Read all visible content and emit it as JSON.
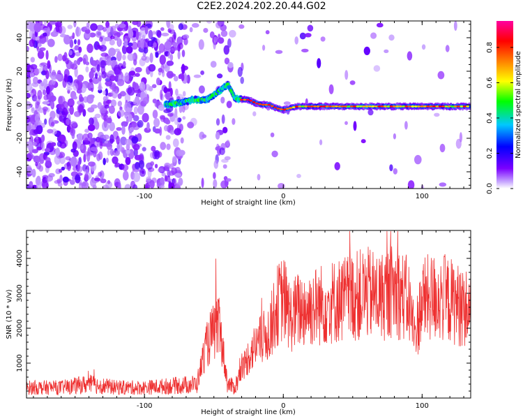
{
  "figure": {
    "title": "C2E2.2024.202.20.44.G02"
  },
  "chart_data": [
    {
      "type": "heatmap",
      "xlabel": "Height of straight line (km)",
      "ylabel": "Frequency (Hz)",
      "xlim": [
        -185,
        135
      ],
      "ylim": [
        -50,
        50
      ],
      "xticks": [
        -100,
        0,
        100
      ],
      "yticks": [
        -40,
        -20,
        0,
        20,
        40
      ],
      "colorbar": {
        "label": "Normalized spectral amplitude",
        "range": [
          0,
          0.95
        ],
        "ticks": [
          "0.0",
          "0.2",
          "0.4",
          "0.6",
          "0.8"
        ],
        "colormap": "rainbow",
        "colors": [
          "#ffffff",
          "#7b00ff",
          "#0000ff",
          "#00c8ff",
          "#00ff00",
          "#ffff00",
          "#ff8000",
          "#ff0000",
          "#ff00a0"
        ]
      },
      "signal_trace": {
        "description": "narrow bright line, Doppler frequency vs height",
        "x": [
          -85,
          -75,
          -65,
          -55,
          -50,
          -45,
          -40,
          -35,
          -30,
          -25,
          -20,
          -15,
          -10,
          -5,
          0,
          5,
          10,
          20,
          40,
          60,
          80,
          100,
          120,
          135
        ],
        "y": [
          0,
          1,
          3,
          3,
          6,
          9,
          12,
          4,
          3,
          3,
          1,
          0,
          0,
          -2,
          -3,
          -2,
          -1,
          -1,
          -1,
          -1,
          -1,
          -1,
          -1,
          -1
        ]
      },
      "grid": false
    },
    {
      "type": "line",
      "xlabel": "Height of straight line (km)",
      "ylabel": "SNR (10 * v/v)",
      "xlim": [
        -185,
        135
      ],
      "ylim": [
        0,
        4800
      ],
      "xticks": [
        -100,
        0,
        100
      ],
      "yticks": [
        1000,
        2000,
        3000,
        4000
      ],
      "series_color": "#ee3030",
      "envelope": {
        "x": [
          -185,
          -160,
          -140,
          -120,
          -100,
          -80,
          -62,
          -57,
          -52,
          -46,
          -40,
          -35,
          -30,
          -25,
          -20,
          -15,
          -10,
          -5,
          0,
          5,
          10,
          20,
          30,
          40,
          50,
          60,
          70,
          80,
          90,
          95,
          100,
          110,
          120,
          135
        ],
        "y": [
          300,
          300,
          400,
          300,
          300,
          350,
          400,
          1300,
          1800,
          2000,
          400,
          300,
          800,
          1200,
          1500,
          1700,
          1900,
          2600,
          2900,
          2300,
          2500,
          2600,
          2700,
          2800,
          2900,
          3000,
          2900,
          3100,
          2800,
          1800,
          2800,
          2900,
          2800,
          2500
        ]
      },
      "grid": false
    }
  ]
}
